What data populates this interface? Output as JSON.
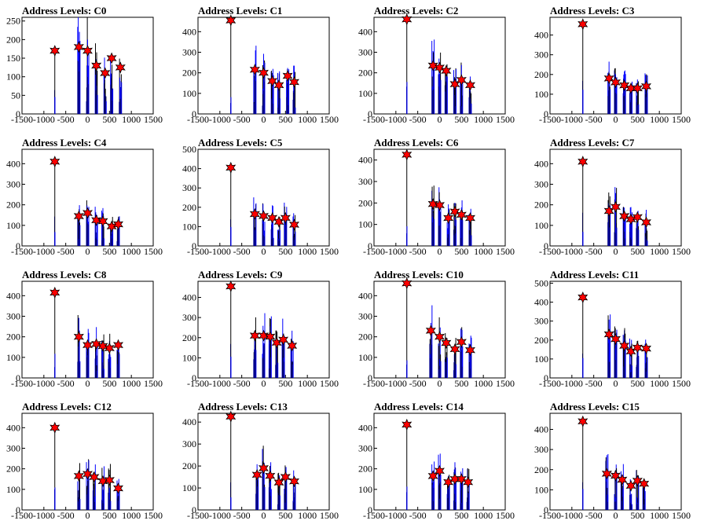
{
  "chart_data": {
    "type": "bar",
    "layout": "4x4 grid of histograms",
    "xlim": [
      -1500,
      1500
    ],
    "xticks": [
      -1500,
      -1000,
      -500,
      0,
      500,
      1000,
      1500
    ],
    "colors": {
      "bar": "#0000ff",
      "bar_secondary": "#000000",
      "marker": "#ff0000",
      "marker_outline": "#000000"
    },
    "panels": [
      {
        "title": "Address Levels: C0",
        "ylim": [
          0,
          260
        ],
        "yticks": [
          0,
          50,
          100,
          150,
          200,
          250
        ],
        "peaks": [
          {
            "x": -750,
            "y": 170
          },
          {
            "x": -200,
            "y": 180
          },
          {
            "x": 0,
            "y": 170
          },
          {
            "x": 200,
            "y": 130
          },
          {
            "x": 400,
            "y": 110
          },
          {
            "x": 550,
            "y": 150
          },
          {
            "x": 750,
            "y": 125
          }
        ]
      },
      {
        "title": "Address Levels: C1",
        "ylim": [
          0,
          470
        ],
        "yticks": [
          0,
          100,
          200,
          300,
          400
        ],
        "peaks": [
          {
            "x": -750,
            "y": 455
          },
          {
            "x": -200,
            "y": 215
          },
          {
            "x": 0,
            "y": 200
          },
          {
            "x": 200,
            "y": 160
          },
          {
            "x": 350,
            "y": 140
          },
          {
            "x": 550,
            "y": 185
          },
          {
            "x": 700,
            "y": 155
          }
        ]
      },
      {
        "title": "Address Levels: C2",
        "ylim": [
          0,
          470
        ],
        "yticks": [
          0,
          100,
          200,
          300,
          400
        ],
        "peaks": [
          {
            "x": -750,
            "y": 460
          },
          {
            "x": -150,
            "y": 235
          },
          {
            "x": 0,
            "y": 225
          },
          {
            "x": 150,
            "y": 210
          },
          {
            "x": 350,
            "y": 145
          },
          {
            "x": 500,
            "y": 165
          },
          {
            "x": 700,
            "y": 140
          }
        ]
      },
      {
        "title": "Address Levels: C3",
        "ylim": [
          0,
          490
        ],
        "yticks": [
          0,
          100,
          200,
          300,
          400
        ],
        "peaks": [
          {
            "x": -750,
            "y": 455
          },
          {
            "x": -150,
            "y": 180
          },
          {
            "x": 0,
            "y": 160
          },
          {
            "x": 200,
            "y": 145
          },
          {
            "x": 350,
            "y": 130
          },
          {
            "x": 500,
            "y": 130
          },
          {
            "x": 700,
            "y": 140
          }
        ]
      },
      {
        "title": "Address Levels: C4",
        "ylim": [
          0,
          470
        ],
        "yticks": [
          0,
          100,
          200,
          300,
          400
        ],
        "peaks": [
          {
            "x": -750,
            "y": 410
          },
          {
            "x": -200,
            "y": 145
          },
          {
            "x": 0,
            "y": 160
          },
          {
            "x": 200,
            "y": 125
          },
          {
            "x": 350,
            "y": 120
          },
          {
            "x": 550,
            "y": 95
          },
          {
            "x": 700,
            "y": 105
          }
        ]
      },
      {
        "title": "Address Levels: C5",
        "ylim": [
          0,
          500
        ],
        "yticks": [
          0,
          100,
          200,
          300,
          400,
          500
        ],
        "peaks": [
          {
            "x": -750,
            "y": 405
          },
          {
            "x": -200,
            "y": 165
          },
          {
            "x": 0,
            "y": 155
          },
          {
            "x": 200,
            "y": 145
          },
          {
            "x": 350,
            "y": 125
          },
          {
            "x": 500,
            "y": 145
          },
          {
            "x": 700,
            "y": 110
          }
        ]
      },
      {
        "title": "Address Levels: C6",
        "ylim": [
          0,
          450
        ],
        "yticks": [
          0,
          100,
          200,
          300,
          400
        ],
        "peaks": [
          {
            "x": -750,
            "y": 425
          },
          {
            "x": -150,
            "y": 195
          },
          {
            "x": 0,
            "y": 190
          },
          {
            "x": 200,
            "y": 130
          },
          {
            "x": 350,
            "y": 160
          },
          {
            "x": 500,
            "y": 145
          },
          {
            "x": 700,
            "y": 130
          }
        ]
      },
      {
        "title": "Address Levels: C7",
        "ylim": [
          0,
          470
        ],
        "yticks": [
          0,
          100,
          200,
          300,
          400
        ],
        "peaks": [
          {
            "x": -750,
            "y": 410
          },
          {
            "x": -150,
            "y": 170
          },
          {
            "x": 0,
            "y": 190
          },
          {
            "x": 200,
            "y": 145
          },
          {
            "x": 350,
            "y": 130
          },
          {
            "x": 500,
            "y": 140
          },
          {
            "x": 700,
            "y": 115
          }
        ]
      },
      {
        "title": "Address Levels: C8",
        "ylim": [
          0,
          470
        ],
        "yticks": [
          0,
          100,
          200,
          300,
          400
        ],
        "peaks": [
          {
            "x": -750,
            "y": 415
          },
          {
            "x": -200,
            "y": 200
          },
          {
            "x": 0,
            "y": 160
          },
          {
            "x": 200,
            "y": 165
          },
          {
            "x": 350,
            "y": 155
          },
          {
            "x": 500,
            "y": 145
          },
          {
            "x": 700,
            "y": 160
          }
        ]
      },
      {
        "title": "Address Levels: C9",
        "ylim": [
          0,
          480
        ],
        "yticks": [
          0,
          100,
          200,
          300,
          400
        ],
        "peaks": [
          {
            "x": -750,
            "y": 455
          },
          {
            "x": -200,
            "y": 210
          },
          {
            "x": 0,
            "y": 210
          },
          {
            "x": 150,
            "y": 205
          },
          {
            "x": 300,
            "y": 175
          },
          {
            "x": 450,
            "y": 190
          },
          {
            "x": 650,
            "y": 160
          }
        ]
      },
      {
        "title": "Address Levels: C10",
        "ylim": [
          0,
          470
        ],
        "yticks": [
          0,
          100,
          200,
          300,
          400
        ],
        "peaks": [
          {
            "x": -750,
            "y": 460
          },
          {
            "x": -200,
            "y": 230
          },
          {
            "x": 0,
            "y": 200
          },
          {
            "x": 150,
            "y": 170
          },
          {
            "x": 350,
            "y": 140
          },
          {
            "x": 500,
            "y": 175
          },
          {
            "x": 700,
            "y": 135
          }
        ]
      },
      {
        "title": "Address Levels: C11",
        "ylim": [
          0,
          510
        ],
        "yticks": [
          0,
          100,
          200,
          300,
          400,
          500
        ],
        "peaks": [
          {
            "x": -750,
            "y": 425
          },
          {
            "x": -150,
            "y": 230
          },
          {
            "x": 0,
            "y": 205
          },
          {
            "x": 200,
            "y": 170
          },
          {
            "x": 350,
            "y": 140
          },
          {
            "x": 500,
            "y": 160
          },
          {
            "x": 700,
            "y": 155
          }
        ]
      },
      {
        "title": "Address Levels: C12",
        "ylim": [
          0,
          470
        ],
        "yticks": [
          0,
          100,
          200,
          300,
          400
        ],
        "peaks": [
          {
            "x": -750,
            "y": 400
          },
          {
            "x": -200,
            "y": 165
          },
          {
            "x": 0,
            "y": 175
          },
          {
            "x": 150,
            "y": 160
          },
          {
            "x": 350,
            "y": 140
          },
          {
            "x": 500,
            "y": 145
          },
          {
            "x": 700,
            "y": 105
          }
        ]
      },
      {
        "title": "Address Levels: C13",
        "ylim": [
          0,
          440
        ],
        "yticks": [
          0,
          100,
          200,
          300,
          400
        ],
        "peaks": [
          {
            "x": -750,
            "y": 425
          },
          {
            "x": -150,
            "y": 160
          },
          {
            "x": 0,
            "y": 190
          },
          {
            "x": 150,
            "y": 155
          },
          {
            "x": 350,
            "y": 125
          },
          {
            "x": 500,
            "y": 150
          },
          {
            "x": 700,
            "y": 130
          }
        ]
      },
      {
        "title": "Address Levels: C14",
        "ylim": [
          0,
          470
        ],
        "yticks": [
          0,
          100,
          200,
          300,
          400
        ],
        "peaks": [
          {
            "x": -750,
            "y": 415
          },
          {
            "x": -150,
            "y": 165
          },
          {
            "x": 0,
            "y": 190
          },
          {
            "x": 200,
            "y": 135
          },
          {
            "x": 350,
            "y": 150
          },
          {
            "x": 500,
            "y": 150
          },
          {
            "x": 650,
            "y": 135
          }
        ]
      },
      {
        "title": "Address Levels: C15",
        "ylim": [
          0,
          480
        ],
        "yticks": [
          0,
          100,
          200,
          300,
          400
        ],
        "peaks": [
          {
            "x": -750,
            "y": 440
          },
          {
            "x": -200,
            "y": 180
          },
          {
            "x": 0,
            "y": 170
          },
          {
            "x": 150,
            "y": 150
          },
          {
            "x": 350,
            "y": 120
          },
          {
            "x": 500,
            "y": 145
          },
          {
            "x": 650,
            "y": 130
          }
        ]
      }
    ]
  }
}
